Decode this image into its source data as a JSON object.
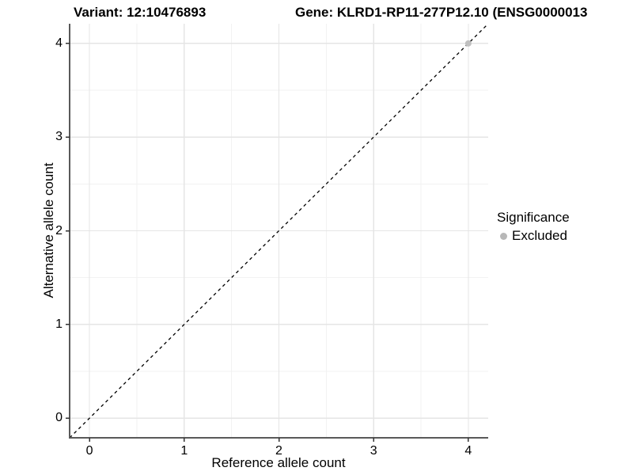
{
  "chart_data": {
    "type": "scatter",
    "title_left": "Variant: 12:10476893",
    "title_right": "Gene: KLRD1-RP11-277P12.10 (ENSG0000013",
    "xlabel": "Reference allele count",
    "ylabel": "Alternative allele count",
    "xlim": [
      -0.21,
      4.21
    ],
    "ylim": [
      -0.21,
      4.21
    ],
    "x_ticks": [
      0,
      1,
      2,
      3,
      4
    ],
    "y_ticks": [
      0,
      1,
      2,
      3,
      4
    ],
    "x_minor_ticks": [
      0.5,
      1.5,
      2.5,
      3.5
    ],
    "y_minor_ticks": [
      0.5,
      1.5,
      2.5,
      3.5
    ],
    "grid": {
      "on": true,
      "major_color": "#e5e5e5",
      "minor_color": "#f2f2f2"
    },
    "identity_line": {
      "style": "dashed",
      "from": [
        -0.21,
        -0.21
      ],
      "to": [
        4.21,
        4.21
      ],
      "color": "#000000",
      "dash": "4,4"
    },
    "points": [
      {
        "x": 4,
        "y": 4,
        "significance": "Excluded",
        "color": "#c0c0c0",
        "radius": 4
      }
    ],
    "legend": {
      "title": "Significance",
      "position": "right",
      "items": [
        {
          "label": "Excluded",
          "color": "#b8b8b8"
        }
      ]
    },
    "colors": {
      "axis_line": "#595959",
      "tick_mark": "#333333"
    }
  }
}
